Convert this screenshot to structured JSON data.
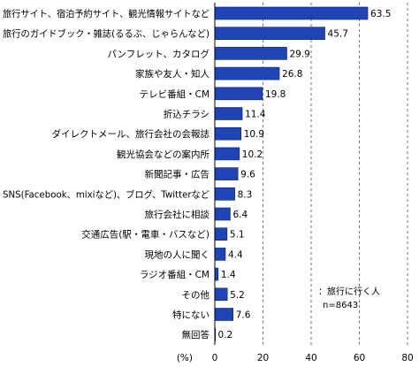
{
  "chart_data": {
    "type": "bar",
    "orientation": "horizontal",
    "categories": [
      "旅行サイト、宿泊予約サイト、観光情報サイトなど",
      "旅行のガイドブック・雑誌(るるぶ、じゃらんなど)",
      "パンフレット、カタログ",
      "家族や友人・知人",
      "テレビ番組・CM",
      "折込チラシ",
      "ダイレクトメール、旅行会社の会報誌",
      "観光協会などの案内所",
      "新聞記事・広告",
      "SNS(Facebook、mixiなど)、ブログ、Twitterなど",
      "旅行会社に相談",
      "交通広告(駅・電車・バスなど)",
      "現地の人に聞く",
      "ラジオ番組・CM",
      "その他",
      "特にない",
      "無回答"
    ],
    "values": [
      63.5,
      45.7,
      29.9,
      26.8,
      19.8,
      11.4,
      10.9,
      10.2,
      9.6,
      8.3,
      6.4,
      5.1,
      4.4,
      1.4,
      5.2,
      7.6,
      0.2
    ],
    "value_labels": [
      "63.5",
      "45.7",
      "29.9",
      "26.8",
      "19.8",
      "11.4",
      "10.9",
      "10.2",
      "9.6",
      "8.3",
      "6.4",
      "5.1",
      "4.4",
      "1.4",
      "5.2",
      "7.6",
      "0.2"
    ],
    "xlim": [
      0,
      80
    ],
    "x_ticks": [
      "0",
      "20",
      "40",
      "60",
      "80"
    ],
    "x_unit": "(%)",
    "grid": "vertical dashed",
    "legend_note": [
      "：旅行に行く人",
      "n=8643"
    ],
    "colors": {
      "bar": "#1f44b4",
      "bar_stroke": "#0b2378",
      "axis": "#000000",
      "grid": "#555555"
    }
  }
}
